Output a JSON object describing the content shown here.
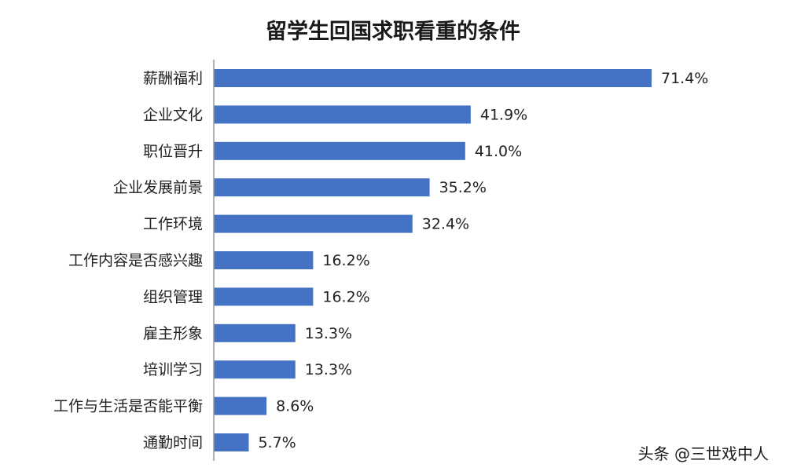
{
  "chart_data": {
    "type": "bar",
    "orientation": "horizontal",
    "title": "留学生回国求职看重的条件",
    "categories": [
      "薪酬福利",
      "企业文化",
      "职位晋升",
      "企业发展前景",
      "工作环境",
      "工作内容是否感兴趣",
      "组织管理",
      "雇主形象",
      "培训学习",
      "工作与生活是否能平衡",
      "通勤时间"
    ],
    "values": [
      71.4,
      41.9,
      41.0,
      35.2,
      32.4,
      16.2,
      16.2,
      13.3,
      13.3,
      8.6,
      5.7
    ],
    "value_labels": [
      "71.4%",
      "41.9%",
      "41.0%",
      "35.2%",
      "32.4%",
      "16.2%",
      "16.2%",
      "13.3%",
      "13.3%",
      "8.6%",
      "5.7%"
    ],
    "unit": "%",
    "bar_color": "#4472c4",
    "grid": false,
    "legend": "none"
  },
  "watermark": "头条 @三世戏中人"
}
